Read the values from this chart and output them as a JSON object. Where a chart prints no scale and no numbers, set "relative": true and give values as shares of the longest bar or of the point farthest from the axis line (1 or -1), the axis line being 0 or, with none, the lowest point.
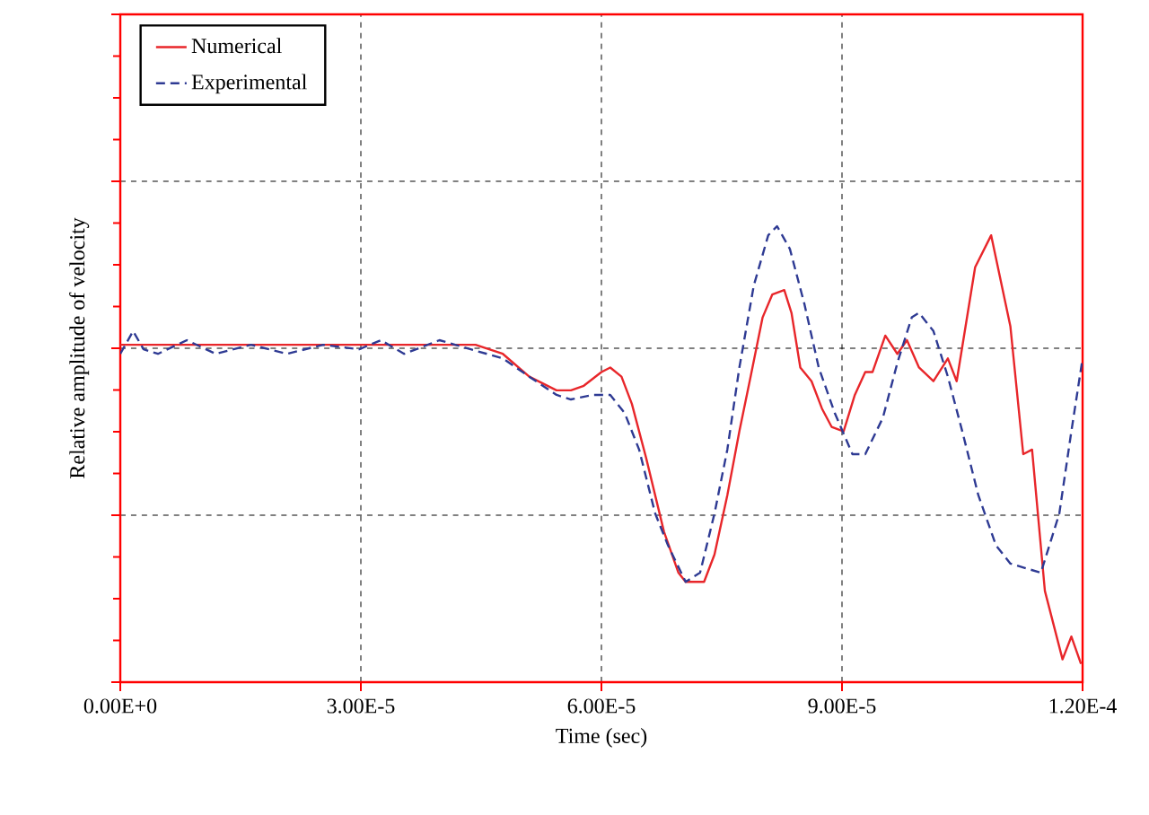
{
  "chart_data": {
    "type": "line",
    "xlabel": "Time  (sec)",
    "ylabel": "Relative amplitude of velocity",
    "relative": true,
    "grid": true,
    "legend": "top left",
    "tick_labels": "x",
    "xlim": [
      0,
      0.00012
    ],
    "xticks": [
      {
        "value": 0,
        "label": "0.00E+0"
      },
      {
        "value": 3e-05,
        "label": "3.00E-5"
      },
      {
        "value": 6e-05,
        "label": "6.00E-5"
      },
      {
        "value": 9e-05,
        "label": "9.00E-5"
      },
      {
        "value": 0.00012,
        "label": "1.20E-4"
      }
    ],
    "series": [
      {
        "name": "Numerical",
        "color": "#e8262a",
        "line_style": "solid",
        "x": [
          0,
          4.43e-05,
          4.77e-05,
          5.1e-05,
          5.44e-05,
          5.62e-05,
          5.78e-05,
          6e-05,
          6.11e-05,
          6.25e-05,
          6.38e-05,
          6.56e-05,
          6.78e-05,
          6.96e-05,
          7.05e-05,
          7.28e-05,
          7.41e-05,
          7.57e-05,
          7.72e-05,
          7.86e-05,
          8.01e-05,
          8.13e-05,
          8.28e-05,
          8.37e-05,
          8.48e-05,
          8.62e-05,
          8.75e-05,
          8.87e-05,
          9.02e-05,
          9.16e-05,
          9.29e-05,
          9.38e-05,
          9.54e-05,
          9.69e-05,
          9.81e-05,
          9.96e-05,
          0.0001014,
          0.0001032,
          0.0001043,
          0.0001066,
          0.0001086,
          0.000111,
          0.0001126,
          0.0001137,
          0.0001153,
          0.0001175,
          0.0001186,
          0.0001198
        ],
        "values": [
          0.74,
          0.74,
          0.72,
          0.67,
          0.64,
          0.64,
          0.65,
          0.68,
          0.69,
          0.67,
          0.61,
          0.49,
          0.33,
          0.24,
          0.22,
          0.22,
          0.28,
          0.41,
          0.55,
          0.67,
          0.8,
          0.85,
          0.86,
          0.81,
          0.69,
          0.66,
          0.6,
          0.56,
          0.55,
          0.63,
          0.68,
          0.68,
          0.76,
          0.72,
          0.75,
          0.69,
          0.66,
          0.71,
          0.66,
          0.91,
          0.98,
          0.78,
          0.5,
          0.51,
          0.2,
          0.05,
          0.1,
          0.04
        ]
      },
      {
        "name": "Experimental",
        "color": "#2e3a93",
        "line_style": "dashed",
        "x": [
          0,
          1.6e-06,
          2.9e-06,
          4.7e-06,
          8.3e-06,
          1.19e-05,
          1.63e-05,
          2.08e-05,
          2.53e-05,
          2.98e-05,
          3.25e-05,
          3.54e-05,
          3.98e-05,
          4.37e-05,
          4.77e-05,
          5.1e-05,
          5.44e-05,
          5.62e-05,
          5.89e-05,
          6.11e-05,
          6.29e-05,
          6.47e-05,
          6.67e-05,
          6.83e-05,
          7.05e-05,
          7.23e-05,
          7.41e-05,
          7.57e-05,
          7.72e-05,
          7.9e-05,
          8.08e-05,
          8.19e-05,
          8.35e-05,
          8.53e-05,
          8.71e-05,
          8.91e-05,
          9.13e-05,
          9.29e-05,
          9.51e-05,
          9.69e-05,
          9.87e-05,
          9.96e-05,
          0.0001014,
          0.0001032,
          0.000105,
          0.000107,
          0.0001092,
          0.000111,
          0.0001148,
          0.0001171,
          0.0001186,
          0.00012
        ],
        "values": [
          0.72,
          0.77,
          0.73,
          0.72,
          0.75,
          0.72,
          0.74,
          0.72,
          0.74,
          0.73,
          0.75,
          0.72,
          0.75,
          0.73,
          0.71,
          0.67,
          0.63,
          0.62,
          0.63,
          0.63,
          0.59,
          0.51,
          0.37,
          0.3,
          0.22,
          0.24,
          0.37,
          0.51,
          0.69,
          0.87,
          0.98,
          1.0,
          0.95,
          0.83,
          0.69,
          0.59,
          0.5,
          0.5,
          0.58,
          0.7,
          0.8,
          0.81,
          0.77,
          0.67,
          0.55,
          0.41,
          0.3,
          0.26,
          0.24,
          0.37,
          0.55,
          0.71
        ]
      }
    ]
  }
}
